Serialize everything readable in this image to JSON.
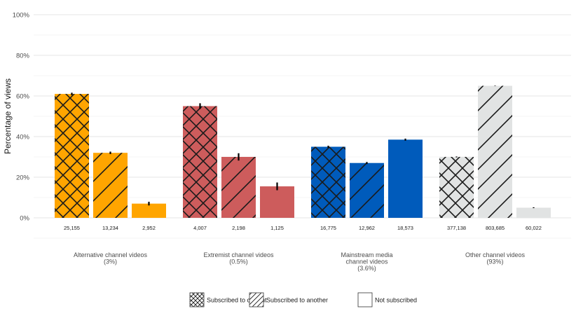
{
  "chart_data": {
    "type": "bar",
    "ylabel": "Percentage of views",
    "ylim": [
      0,
      100
    ],
    "yticks": [
      "0%",
      "20%",
      "40%",
      "60%",
      "80%",
      "100%"
    ],
    "grid": true,
    "legend_position": "bottom",
    "legend": [
      {
        "name": "Subscribed to current",
        "pattern": "crosshatch"
      },
      {
        "name": "Subscribed to another",
        "pattern": "diagonal"
      },
      {
        "name": "Not subscribed",
        "pattern": "none"
      }
    ],
    "groups": [
      {
        "label": "Alternative channel videos",
        "share": "(3%)",
        "color": "#FFA500",
        "bars": [
          {
            "series": "Subscribed to current",
            "value": 61,
            "err": 0.6,
            "count": "25,155"
          },
          {
            "series": "Subscribed to another",
            "value": 32,
            "err": 0.6,
            "count": "13,234"
          },
          {
            "series": "Not subscribed",
            "value": 7,
            "err": 0.9,
            "count": "2,952"
          }
        ]
      },
      {
        "label": "Extremist channel videos",
        "share": "(0.5%)",
        "color": "#CD5C5C",
        "bars": [
          {
            "series": "Subscribed to current",
            "value": 55,
            "err": 1.4,
            "count": "4,007"
          },
          {
            "series": "Subscribed to another",
            "value": 30,
            "err": 1.8,
            "count": "2,198"
          },
          {
            "series": "Not subscribed",
            "value": 15.5,
            "err": 1.9,
            "count": "1,125"
          }
        ]
      },
      {
        "label": "Mainstream media channel videos",
        "label_lines": [
          "Mainstream media",
          "channel videos"
        ],
        "share": "(3.6%)",
        "color": "#005BBB",
        "bars": [
          {
            "series": "Subscribed to current",
            "value": 35,
            "err": 0.5,
            "count": "16,775"
          },
          {
            "series": "Subscribed to another",
            "value": 27,
            "err": 0.5,
            "count": "12,962"
          },
          {
            "series": "Not subscribed",
            "value": 38.5,
            "err": 0.5,
            "count": "18,573"
          }
        ]
      },
      {
        "label": "Other channel videos",
        "share": "(93%)",
        "color": "#E1E3E3",
        "bars": [
          {
            "series": "Subscribed to current",
            "value": 30,
            "err": 0.2,
            "count": "377,138"
          },
          {
            "series": "Subscribed to another",
            "value": 65,
            "err": 0.1,
            "count": "803,685"
          },
          {
            "series": "Not subscribed",
            "value": 5,
            "err": 0.2,
            "count": "60,022"
          }
        ]
      }
    ]
  }
}
